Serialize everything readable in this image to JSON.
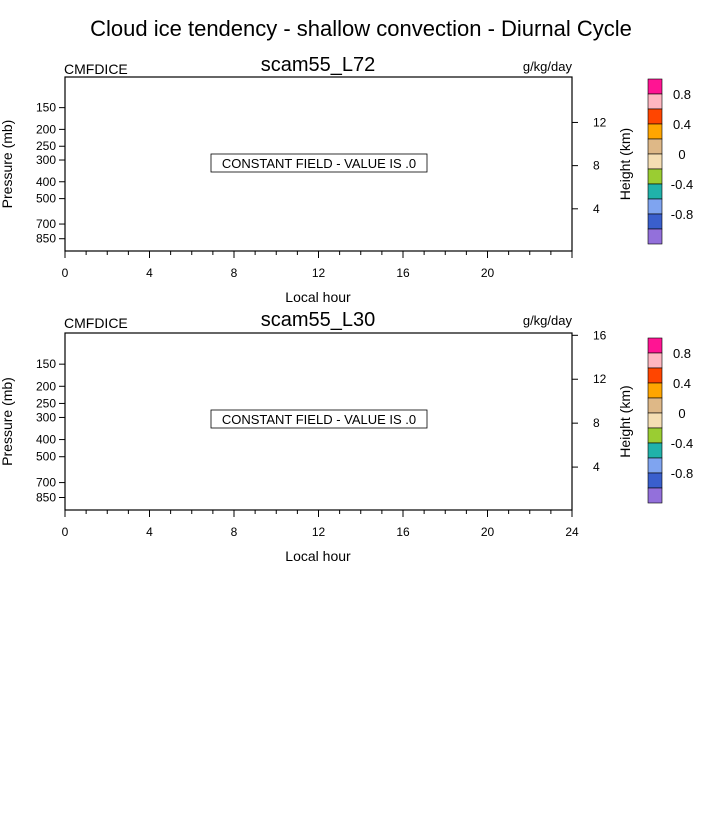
{
  "title": "Cloud ice tendency - shallow convection - Diurnal Cycle",
  "colorbar_colors": [
    "#9370db",
    "#3a5fcd",
    "#7fa4f0",
    "#20b2aa",
    "#9acd32",
    "#f5deb3",
    "#deb887",
    "#ffa500",
    "#ff4500",
    "#ffb6c1",
    "#ff1493"
  ],
  "chart_data": [
    {
      "type": "heatmap",
      "panel_title": "scam55_L72",
      "left_label": "CMFDICE",
      "units": "g/kg/day",
      "message": "CONSTANT FIELD - VALUE IS .0",
      "constant_value": 0.0,
      "xlabel": "Local hour",
      "ylabel": "Pressure (mb)",
      "ylabel_right": "Height (km)",
      "xlim": [
        0,
        24
      ],
      "xticks": [
        0,
        4,
        8,
        12,
        16,
        20
      ],
      "xtick_labels": [
        "0",
        "4",
        "8",
        "12",
        "16",
        "20"
      ],
      "yticks": [
        150,
        200,
        250,
        300,
        400,
        500,
        700,
        850
      ],
      "ytick_labels": [
        "150",
        "200",
        "250",
        "300",
        "400",
        "500",
        "700",
        "850"
      ],
      "ylim": [
        100,
        1000
      ],
      "yscale": "log",
      "yticks_right": [
        12,
        8,
        4
      ],
      "ytick_labels_right": [
        "12",
        "8",
        "4"
      ],
      "colorbar_labels": [
        "0.8",
        "0.4",
        "0",
        "-0.4",
        "-0.8"
      ]
    },
    {
      "type": "heatmap",
      "panel_title": "scam55_L30",
      "left_label": "CMFDICE",
      "units": "g/kg/day",
      "message": "CONSTANT FIELD - VALUE IS .0",
      "constant_value": 0.0,
      "xlabel": "Local hour",
      "ylabel": "Pressure (mb)",
      "ylabel_right": "Height (km)",
      "xlim": [
        0,
        24
      ],
      "xticks": [
        0,
        4,
        8,
        12,
        16,
        20,
        24
      ],
      "xtick_labels": [
        "0",
        "4",
        "8",
        "12",
        "16",
        "20",
        "24"
      ],
      "yticks": [
        150,
        200,
        250,
        300,
        400,
        500,
        700,
        850
      ],
      "ytick_labels": [
        "150",
        "200",
        "250",
        "300",
        "400",
        "500",
        "700",
        "850"
      ],
      "ylim": [
        100,
        1000
      ],
      "yscale": "log",
      "yticks_right": [
        16,
        12,
        8,
        4
      ],
      "ytick_labels_right": [
        "16",
        "12",
        "8",
        "4"
      ],
      "colorbar_labels": [
        "0.8",
        "0.4",
        "0",
        "-0.4",
        "-0.8"
      ]
    }
  ]
}
